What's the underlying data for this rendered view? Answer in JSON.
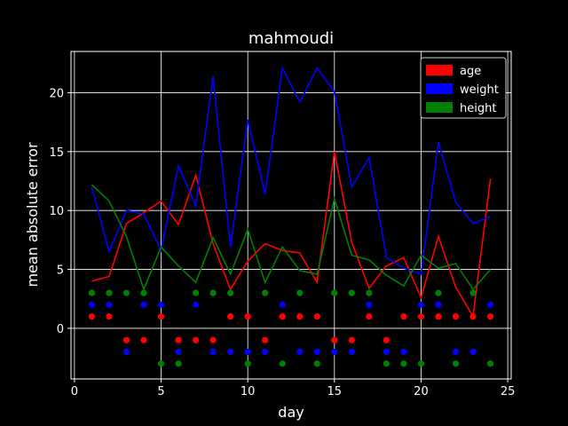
{
  "chart_data": {
    "type": "line",
    "title": "mahmoudi",
    "xlabel": "day",
    "ylabel": "mean absolute error",
    "xlim": [
      -0.2,
      25.2
    ],
    "ylim": [
      -4.3,
      23.5
    ],
    "xticks": [
      0,
      5,
      10,
      15,
      20,
      25
    ],
    "yticks": [
      0,
      5,
      10,
      15,
      20
    ],
    "grid": true,
    "background": "#000000",
    "legend_position": "top-right",
    "x": [
      1,
      2,
      3,
      4,
      5,
      6,
      7,
      8,
      9,
      10,
      11,
      12,
      13,
      14,
      15,
      16,
      17,
      18,
      19,
      20,
      21,
      22,
      23,
      24
    ],
    "series": [
      {
        "name": "age",
        "color": "#ff0000",
        "values": [
          4.0,
          4.4,
          8.9,
          9.8,
          10.8,
          8.8,
          13.0,
          7.2,
          3.3,
          5.7,
          7.2,
          6.6,
          6.4,
          3.9,
          15.0,
          7.3,
          3.4,
          5.3,
          6.0,
          2.6,
          7.8,
          3.5,
          1.0,
          12.7
        ],
        "markers_y": [
          1,
          1,
          -1,
          -1,
          1,
          -1,
          -1,
          -1,
          1,
          1,
          -1,
          1,
          1,
          1,
          -1,
          -1,
          1,
          -1,
          1,
          1,
          1,
          1,
          1,
          1
        ]
      },
      {
        "name": "weight",
        "color": "#0000ff",
        "values": [
          12.0,
          6.5,
          10.0,
          9.7,
          6.6,
          13.8,
          10.4,
          21.4,
          6.9,
          17.7,
          11.4,
          22.1,
          19.2,
          22.1,
          20.1,
          12.0,
          14.5,
          6.0,
          5.1,
          4.6,
          15.8,
          10.7,
          8.9,
          9.5
        ],
        "markers_y": [
          2,
          2,
          -2,
          2,
          2,
          -2,
          2,
          -2,
          -2,
          -2,
          -2,
          2,
          -2,
          -2,
          -2,
          -2,
          2,
          -2,
          -2,
          2,
          2,
          -2,
          -2,
          2
        ]
      },
      {
        "name": "height",
        "color": "#008000",
        "values": [
          12.2,
          10.8,
          7.8,
          3.3,
          6.9,
          5.3,
          3.9,
          7.7,
          4.6,
          8.4,
          3.9,
          6.9,
          4.9,
          4.6,
          11.0,
          6.2,
          5.8,
          4.5,
          3.6,
          6.2,
          5.1,
          5.5,
          3.3,
          5.0
        ],
        "markers_y": [
          3,
          3,
          3,
          3,
          -3,
          -3,
          3,
          3,
          3,
          -3,
          3,
          -3,
          3,
          -3,
          3,
          3,
          3,
          -3,
          -3,
          -3,
          3,
          -3,
          3,
          -3
        ]
      }
    ]
  }
}
